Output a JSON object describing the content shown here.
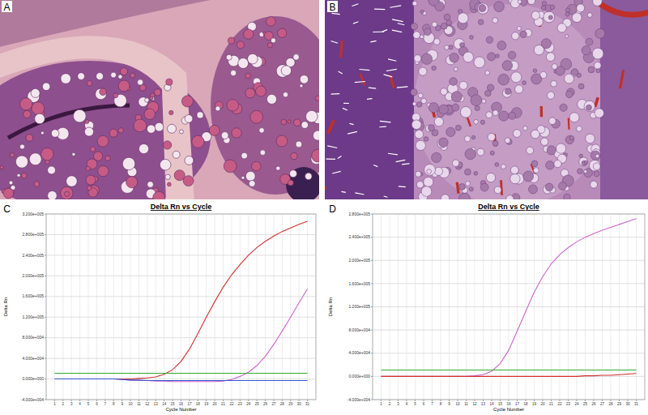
{
  "panel_labels": [
    "A",
    "B",
    "C",
    "D"
  ],
  "chart_data": [
    {
      "type": "line",
      "title": "Delta Rn vs Cycle",
      "x_label": "Cycle Number",
      "y_label": "Delta Rn",
      "x": [
        1,
        2,
        3,
        4,
        5,
        6,
        7,
        8,
        9,
        10,
        11,
        12,
        13,
        14,
        15,
        16,
        17,
        18,
        19,
        20,
        21,
        22,
        23,
        24,
        25,
        26,
        27,
        28,
        29,
        30,
        31
      ],
      "xlim": [
        0,
        32
      ],
      "xticks": [
        1,
        2,
        3,
        4,
        5,
        6,
        7,
        8,
        9,
        10,
        11,
        12,
        13,
        14,
        15,
        16,
        17,
        18,
        19,
        20,
        21,
        22,
        23,
        24,
        25,
        26,
        27,
        28,
        29,
        30,
        31
      ],
      "ylim": [
        -40000,
        320000
      ],
      "yticks": [
        {
          "value": -40000,
          "label": "-4.000e+004"
        },
        {
          "value": 0,
          "label": "0.000e+000"
        },
        {
          "value": 40000,
          "label": "4.000e+004"
        },
        {
          "value": 80000,
          "label": "8.000e+004"
        },
        {
          "value": 120000,
          "label": "1.200e+005"
        },
        {
          "value": 160000,
          "label": "1.600e+005"
        },
        {
          "value": 200000,
          "label": "2.000e+005"
        },
        {
          "value": 240000,
          "label": "2.400e+005"
        },
        {
          "value": 280000,
          "label": "2.800e+005"
        },
        {
          "value": 320000,
          "label": "3.200e+005"
        }
      ],
      "grid": true,
      "series": [
        {
          "color": "#d03030",
          "values": [
            0,
            0,
            0,
            0,
            0,
            0,
            0,
            0,
            0,
            0,
            1000,
            2000,
            4000,
            9000,
            18000,
            34000,
            58000,
            88000,
            120000,
            150000,
            178000,
            202000,
            222000,
            240000,
            255000,
            267000,
            277000,
            286000,
            293000,
            300000,
            306000
          ]
        },
        {
          "color": "#cc66cc",
          "values": [
            0,
            0,
            0,
            0,
            0,
            0,
            0,
            0,
            -1000,
            -2000,
            -3000,
            -3000,
            -4000,
            -4000,
            -5000,
            -5000,
            -5000,
            -5000,
            -5000,
            -5000,
            -4000,
            -1000,
            5000,
            13000,
            26000,
            44000,
            67000,
            93000,
            120000,
            148000,
            175000
          ]
        },
        {
          "color": "#3355cc",
          "values": [
            0,
            0,
            0,
            0,
            0,
            0,
            0,
            0,
            -1000,
            -2000,
            -2000,
            -3000,
            -3000,
            -3000,
            -3000,
            -3000,
            -3000,
            -3000,
            -3000,
            -3000,
            -3000,
            -3000,
            -3000,
            -3000,
            -3000,
            -3000,
            -3000,
            -3000,
            -3000,
            -3000,
            -3000
          ]
        },
        {
          "color": "#33aa33",
          "values": [
            11000,
            11000,
            11000,
            11000,
            11000,
            11000,
            11000,
            11000,
            11000,
            11000,
            11000,
            11000,
            11000,
            11000,
            11000,
            11000,
            11000,
            11000,
            11000,
            11000,
            11000,
            11000,
            11000,
            11000,
            11000,
            11000,
            11000,
            11000,
            11000,
            11000,
            11000
          ]
        }
      ]
    },
    {
      "type": "line",
      "title": "Delta Rn vs Cycle",
      "x_label": "Cycle Number",
      "y_label": "Delta Rn",
      "x": [
        1,
        2,
        3,
        4,
        5,
        6,
        7,
        8,
        9,
        10,
        11,
        12,
        13,
        14,
        15,
        16,
        17,
        18,
        19,
        20,
        21,
        22,
        23,
        24,
        25,
        26,
        27,
        28,
        29,
        30,
        31
      ],
      "xlim": [
        0,
        32
      ],
      "xticks": [
        1,
        2,
        3,
        4,
        5,
        6,
        7,
        8,
        9,
        10,
        11,
        12,
        13,
        14,
        15,
        16,
        17,
        18,
        19,
        20,
        21,
        22,
        23,
        24,
        25,
        26,
        27,
        28,
        29,
        30,
        31
      ],
      "ylim": [
        -40000,
        280000
      ],
      "yticks": [
        {
          "value": -40000,
          "label": "-4.000e+004"
        },
        {
          "value": 0,
          "label": "0.000e+000"
        },
        {
          "value": 40000,
          "label": "4.000e+004"
        },
        {
          "value": 80000,
          "label": "8.000e+004"
        },
        {
          "value": 120000,
          "label": "1.200e+005"
        },
        {
          "value": 160000,
          "label": "1.600e+005"
        },
        {
          "value": 200000,
          "label": "2.000e+005"
        },
        {
          "value": 240000,
          "label": "2.400e+005"
        },
        {
          "value": 280000,
          "label": "2.800e+005"
        }
      ],
      "grid": true,
      "series": [
        {
          "color": "#cc66cc",
          "values": [
            0,
            0,
            0,
            0,
            0,
            0,
            0,
            0,
            0,
            0,
            0,
            1000,
            3000,
            9000,
            22000,
            45000,
            78000,
            112000,
            145000,
            172000,
            194000,
            210000,
            222000,
            232000,
            240000,
            246000,
            252000,
            257000,
            262000,
            267000,
            272000
          ]
        },
        {
          "color": "#d03030",
          "values": [
            0,
            0,
            0,
            0,
            0,
            0,
            0,
            0,
            0,
            0,
            0,
            0,
            0,
            0,
            0,
            0,
            0,
            0,
            0,
            0,
            0,
            0,
            0,
            0,
            1000,
            1000,
            2000,
            2000,
            3000,
            4000,
            5000
          ]
        },
        {
          "color": "#33aa33",
          "values": [
            11000,
            11000,
            11000,
            11000,
            11000,
            11000,
            11000,
            11000,
            11000,
            11000,
            11000,
            11000,
            11000,
            11000,
            11000,
            11000,
            11000,
            11000,
            11000,
            11000,
            11000,
            11000,
            11000,
            11000,
            11000,
            11000,
            11000,
            11000,
            11000,
            11000,
            11000
          ]
        }
      ]
    }
  ]
}
